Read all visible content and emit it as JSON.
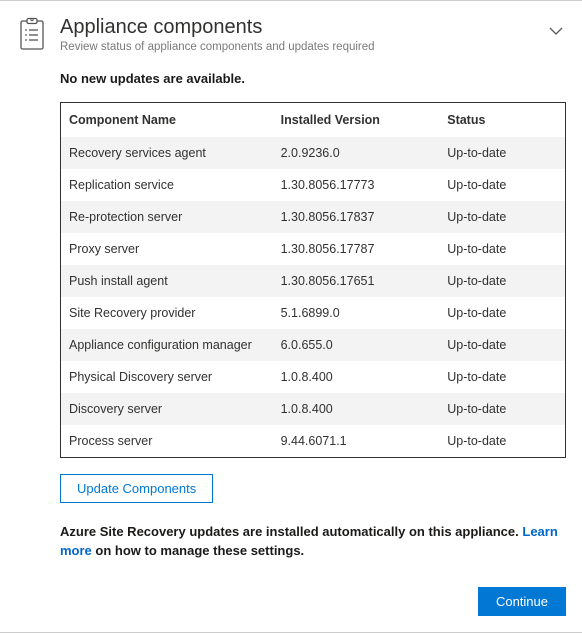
{
  "header": {
    "title": "Appliance components",
    "subtitle": "Review status of appliance components and updates required"
  },
  "status_message": "No new updates are available.",
  "table": {
    "columns": [
      "Component Name",
      "Installed Version",
      "Status"
    ],
    "rows": [
      {
        "name": "Recovery services agent",
        "version": "2.0.9236.0",
        "status": "Up-to-date"
      },
      {
        "name": "Replication service",
        "version": "1.30.8056.17773",
        "status": "Up-to-date"
      },
      {
        "name": "Re-protection server",
        "version": "1.30.8056.17837",
        "status": "Up-to-date"
      },
      {
        "name": "Proxy server",
        "version": "1.30.8056.17787",
        "status": "Up-to-date"
      },
      {
        "name": "Push install agent",
        "version": "1.30.8056.17651",
        "status": "Up-to-date"
      },
      {
        "name": "Site Recovery provider",
        "version": "5.1.6899.0",
        "status": "Up-to-date"
      },
      {
        "name": "Appliance configuration manager",
        "version": "6.0.655.0",
        "status": "Up-to-date"
      },
      {
        "name": "Physical Discovery server",
        "version": "1.0.8.400",
        "status": "Up-to-date"
      },
      {
        "name": "Discovery server",
        "version": "1.0.8.400",
        "status": "Up-to-date"
      },
      {
        "name": "Process server",
        "version": "9.44.6071.1",
        "status": "Up-to-date"
      }
    ]
  },
  "buttons": {
    "update": "Update Components",
    "continue": "Continue"
  },
  "info": {
    "lead_bold": "Azure Site Recovery updates are installed automatically on this appliance. ",
    "learn_more": "Learn more",
    "trail_bold": " on how to manage these settings."
  },
  "colors": {
    "accent": "#0078d4",
    "link": "#0066cc",
    "row_alt": "#f3f3f3",
    "border": "#323130",
    "subtitle": "#7a7a7a"
  }
}
